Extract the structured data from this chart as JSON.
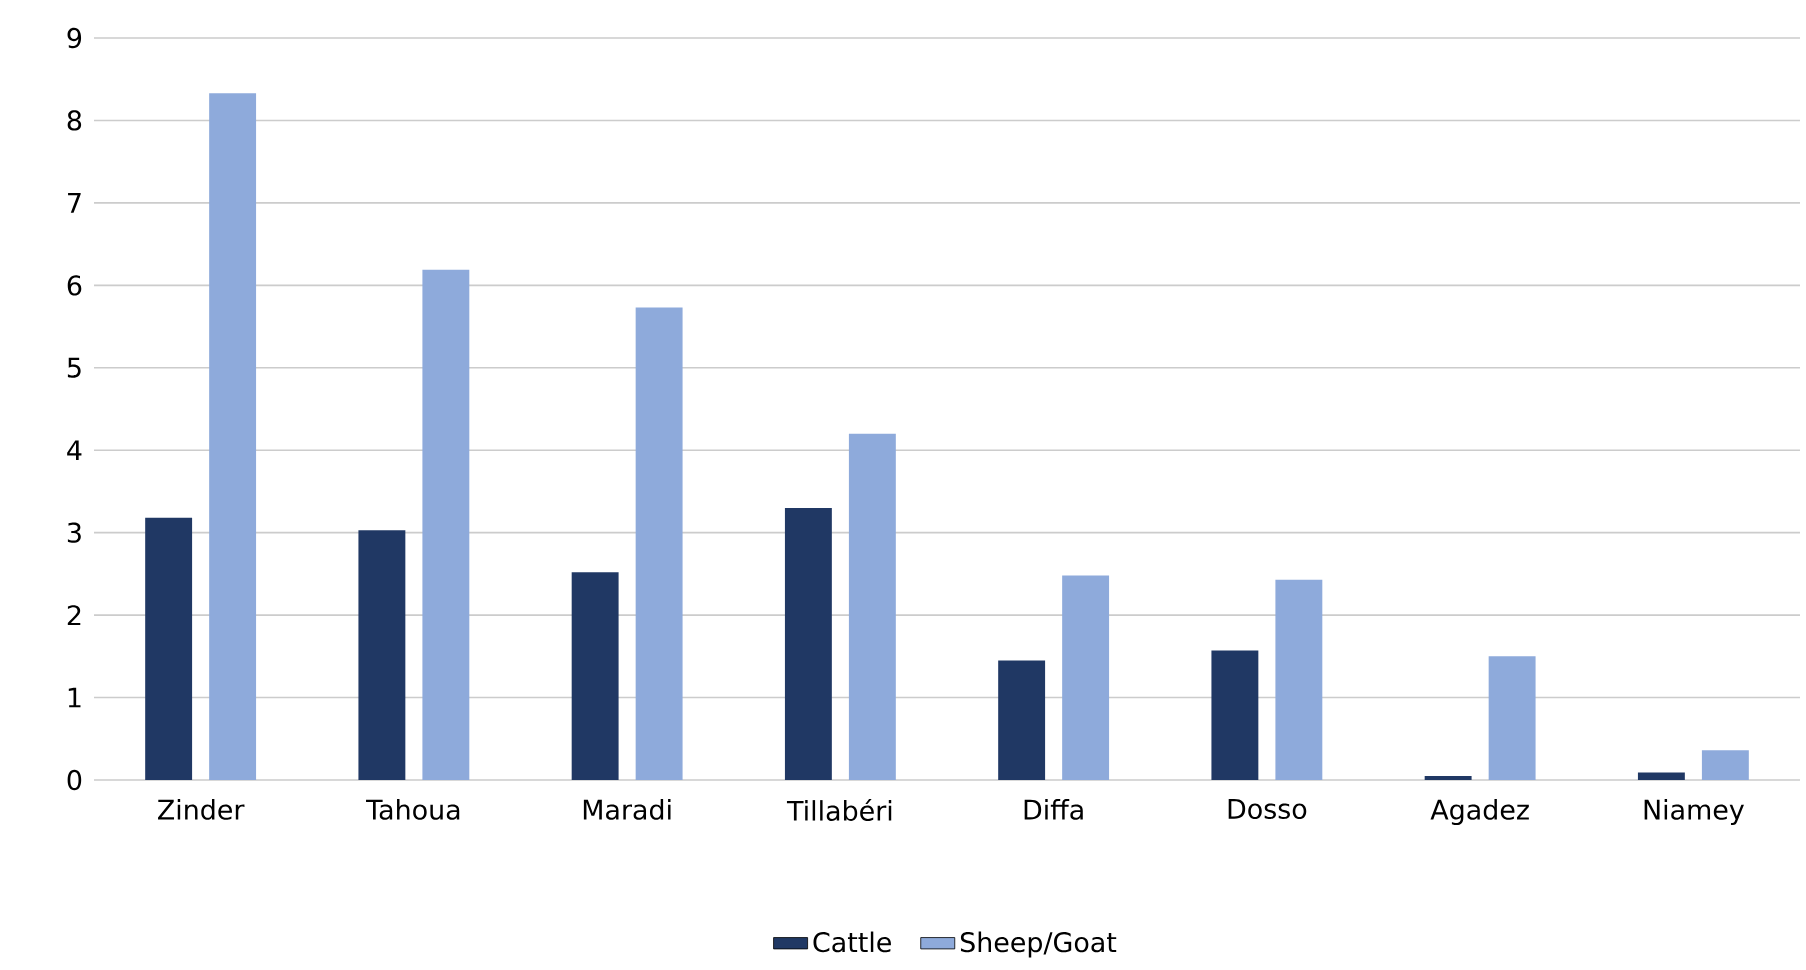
{
  "chart_data": {
    "type": "bar",
    "categories": [
      "Zinder",
      "Tahoua",
      "Maradi",
      "Tillabéri",
      "Diffa",
      "Dosso",
      "Agadez",
      "Niamey"
    ],
    "series": [
      {
        "name": "Cattle",
        "color": "#203864",
        "values": [
          3.18,
          3.03,
          2.52,
          3.3,
          1.45,
          1.57,
          0.05,
          0.09
        ]
      },
      {
        "name": "Sheep/Goat",
        "color": "#8eaadb",
        "values": [
          8.33,
          6.19,
          5.73,
          4.2,
          2.48,
          2.43,
          1.5,
          0.36
        ]
      }
    ],
    "ylim": [
      0,
      9
    ],
    "yticks": [
      0,
      1,
      2,
      3,
      4,
      5,
      6,
      7,
      8,
      9
    ],
    "grid": "y",
    "legend": "bottom"
  }
}
